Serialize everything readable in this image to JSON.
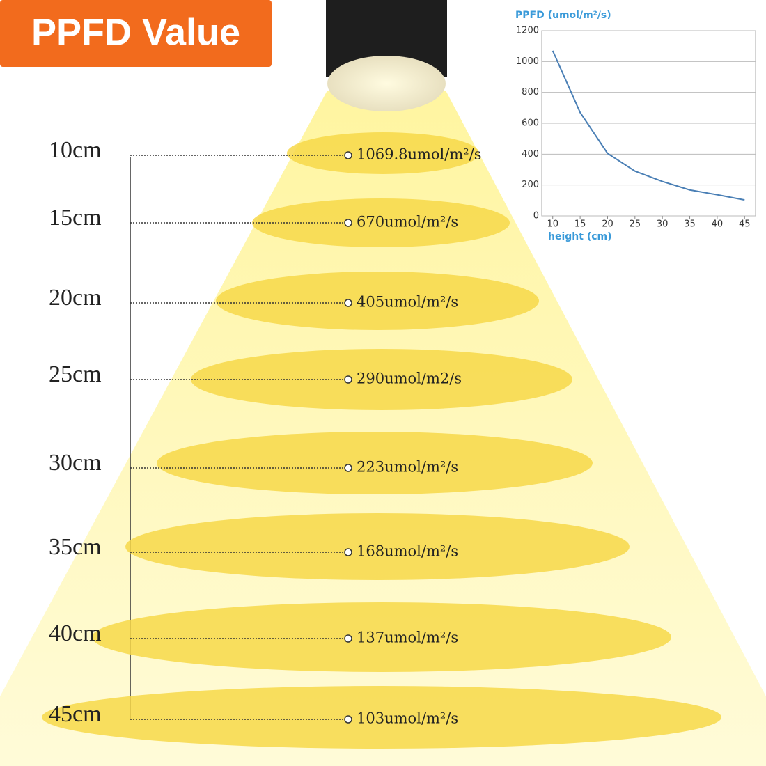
{
  "header": {
    "title": "PPFD Value"
  },
  "levels": [
    {
      "height": "10cm",
      "reading": "1069.8umol/m²/s"
    },
    {
      "height": "15cm",
      "reading": "670umol/m²/s"
    },
    {
      "height": "20cm",
      "reading": "405umol/m²/s"
    },
    {
      "height": "25cm",
      "reading": "290umol/m2/s"
    },
    {
      "height": "30cm",
      "reading": "223umol/m²/s"
    },
    {
      "height": "35cm",
      "reading": "168umol/m²/s"
    },
    {
      "height": "40cm",
      "reading": "137umol/m²/s"
    },
    {
      "height": "45cm",
      "reading": "103umol/m²/s"
    }
  ],
  "chart_data": {
    "type": "line",
    "y_label": "PPFD (umol/m²/s)",
    "x_label": "height (cm)",
    "x": [
      10,
      15,
      20,
      25,
      30,
      35,
      40,
      45
    ],
    "series": [
      {
        "name": "PPFD",
        "color": "#4a7fb5",
        "values": [
          1069.8,
          670,
          405,
          290,
          223,
          168,
          137,
          103
        ]
      }
    ],
    "xlim": [
      8,
      47
    ],
    "xticks": [
      10,
      15,
      20,
      25,
      30,
      35,
      40,
      45
    ],
    "ylim": [
      0,
      1200
    ],
    "yticks": [
      0,
      200,
      400,
      600,
      800,
      1000,
      1200
    ],
    "grid": true
  }
}
